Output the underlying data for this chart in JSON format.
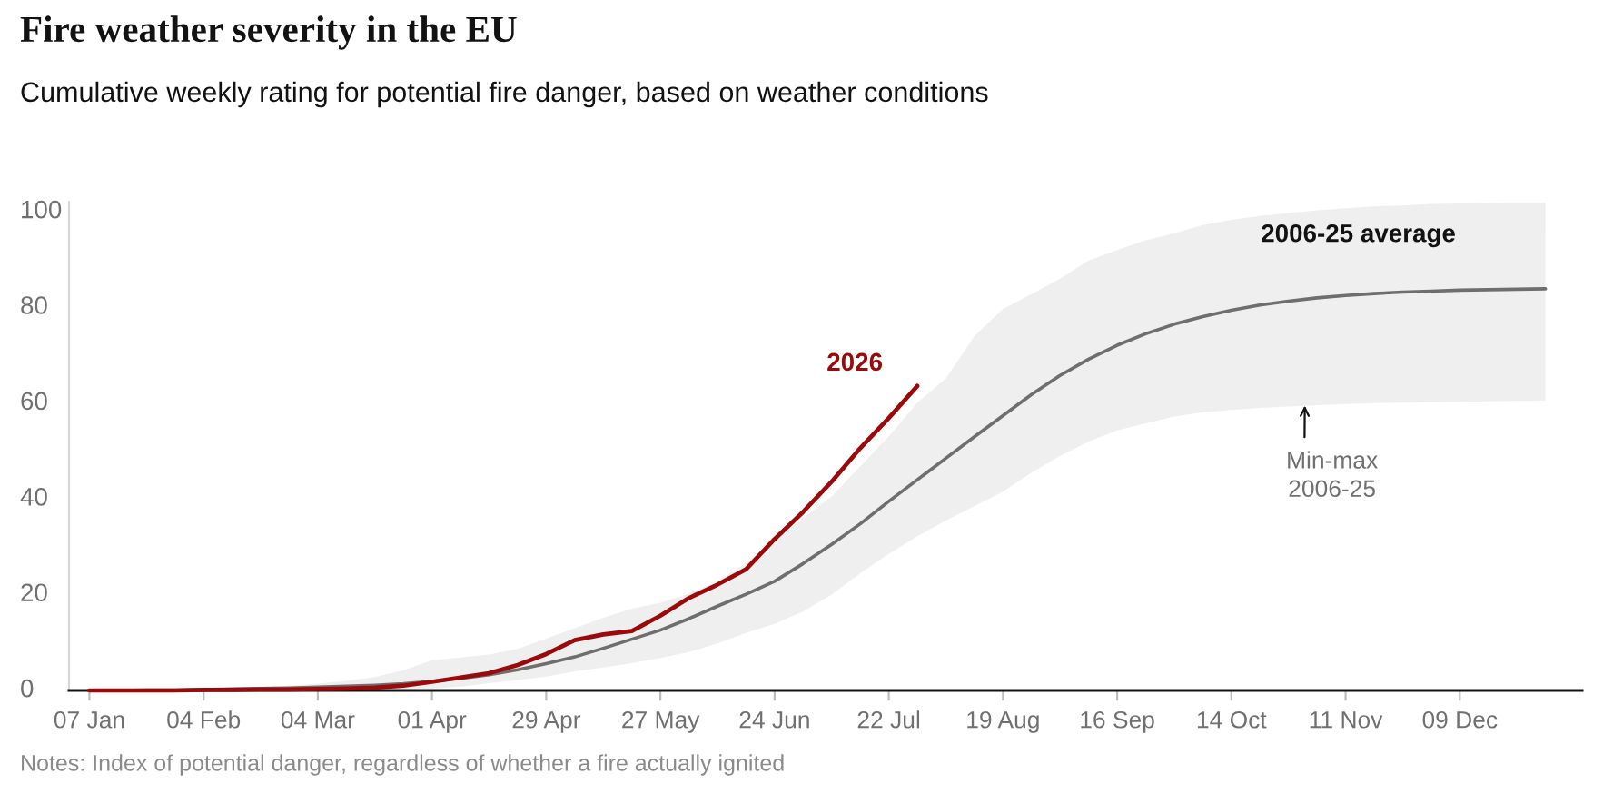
{
  "chart_data": {
    "type": "line",
    "title": "Fire weather severity in the EU",
    "subtitle": "Cumulative weekly rating for potential fire danger, based on weather conditions",
    "x": [
      "2026-01-07",
      "2026-01-14",
      "2026-01-21",
      "2026-01-28",
      "2026-02-04",
      "2026-02-11",
      "2026-02-18",
      "2026-02-25",
      "2026-03-04",
      "2026-03-11",
      "2026-03-18",
      "2026-03-25",
      "2026-04-01",
      "2026-04-08",
      "2026-04-15",
      "2026-04-22",
      "2026-04-29",
      "2026-05-06",
      "2026-05-13",
      "2026-05-20",
      "2026-05-27",
      "2026-06-03",
      "2026-06-10",
      "2026-06-17",
      "2026-06-24",
      "2026-07-01",
      "2026-07-08",
      "2026-07-15",
      "2026-07-22",
      "2026-07-29",
      "2026-08-05",
      "2026-08-12",
      "2026-08-19",
      "2026-08-26",
      "2026-09-02",
      "2026-09-09",
      "2026-09-16",
      "2026-09-23",
      "2026-09-30",
      "2026-10-07",
      "2026-10-14",
      "2026-10-21",
      "2026-10-28",
      "2026-11-04",
      "2026-11-11",
      "2026-11-18",
      "2026-11-25",
      "2026-12-02",
      "2026-12-09",
      "2026-12-16",
      "2026-12-23",
      "2026-12-30"
    ],
    "series": [
      {
        "name": "2006-25 average",
        "color": "#6e6e6e",
        "values": [
          0,
          0,
          0.1,
          0.1,
          0.2,
          0.3,
          0.4,
          0.5,
          0.7,
          0.9,
          1.1,
          1.4,
          1.9,
          2.5,
          3.3,
          4.3,
          5.6,
          7.0,
          8.8,
          10.7,
          12.6,
          15.0,
          17.6,
          20.1,
          22.8,
          26.5,
          30.5,
          34.8,
          39.5,
          44.0,
          48.5,
          53.0,
          57.4,
          61.8,
          65.8,
          69.2,
          72.1,
          74.5,
          76.5,
          78.1,
          79.4,
          80.5,
          81.3,
          82.0,
          82.5,
          82.9,
          83.2,
          83.4,
          83.6,
          83.7,
          83.8,
          83.9
        ],
        "lower": [
          0,
          0,
          0,
          0,
          0,
          0,
          0,
          0,
          0,
          0,
          0.1,
          0.2,
          0.4,
          0.8,
          1.5,
          2.2,
          2.9,
          4.0,
          4.8,
          5.7,
          6.8,
          8.0,
          9.8,
          12.0,
          13.9,
          16.5,
          20.0,
          24.5,
          28.5,
          32.2,
          35.5,
          38.5,
          41.5,
          45.5,
          49.0,
          52.0,
          54.3,
          55.8,
          57.2,
          58.1,
          58.6,
          59.0,
          59.3,
          59.6,
          59.8,
          60.0,
          60.1,
          60.2,
          60.3,
          60.4,
          60.5,
          60.6
        ],
        "upper": [
          0,
          0.1,
          0.2,
          0.3,
          0.4,
          0.6,
          0.8,
          1.0,
          1.4,
          2.0,
          2.8,
          4.2,
          6.3,
          6.9,
          7.5,
          8.7,
          10.8,
          13.0,
          15.2,
          17.1,
          18.3,
          20.2,
          22.8,
          26.6,
          31.0,
          36.0,
          40.5,
          46.8,
          53.1,
          60.1,
          65.2,
          74.0,
          79.7,
          82.8,
          86.0,
          89.8,
          92.0,
          94.0,
          95.5,
          97.2,
          98.3,
          99.1,
          99.7,
          100.3,
          100.7,
          101.1,
          101.3,
          101.6,
          101.7,
          101.8,
          101.9,
          101.9
        ]
      },
      {
        "name": "2026",
        "color": "#9b0a0a",
        "x": [
          "2026-01-07",
          "2026-01-14",
          "2026-01-21",
          "2026-01-28",
          "2026-02-04",
          "2026-02-11",
          "2026-02-18",
          "2026-02-25",
          "2026-03-04",
          "2026-03-11",
          "2026-03-18",
          "2026-03-25",
          "2026-04-01",
          "2026-04-08",
          "2026-04-15",
          "2026-04-22",
          "2026-04-29",
          "2026-05-06",
          "2026-05-13",
          "2026-05-20",
          "2026-05-27",
          "2026-06-03",
          "2026-06-10",
          "2026-06-17",
          "2026-06-24",
          "2026-07-01",
          "2026-07-08",
          "2026-07-15",
          "2026-07-22",
          "2026-07-29"
        ],
        "values": [
          0,
          0,
          0,
          0,
          0.1,
          0.1,
          0.2,
          0.2,
          0.3,
          0.4,
          0.6,
          1.0,
          1.8,
          2.7,
          3.6,
          5.3,
          7.6,
          10.5,
          11.7,
          12.4,
          15.6,
          19.3,
          22.1,
          25.3,
          31.6,
          37.3,
          43.6,
          50.6,
          56.9,
          63.6
        ]
      }
    ],
    "xlim": [
      "2026-01-02",
      "2027-01-08"
    ],
    "xticks": [
      {
        "value": "2026-01-07",
        "label": "07 Jan"
      },
      {
        "value": "2026-02-04",
        "label": "04 Feb"
      },
      {
        "value": "2026-03-04",
        "label": "04 Mar"
      },
      {
        "value": "2026-04-01",
        "label": "01 Apr"
      },
      {
        "value": "2026-04-29",
        "label": "29 Apr"
      },
      {
        "value": "2026-05-27",
        "label": "27 May"
      },
      {
        "value": "2026-06-24",
        "label": "24 Jun"
      },
      {
        "value": "2026-07-22",
        "label": "22 Jul"
      },
      {
        "value": "2026-08-19",
        "label": "19 Aug"
      },
      {
        "value": "2026-09-16",
        "label": "16 Sep"
      },
      {
        "value": "2026-10-14",
        "label": "14 Oct"
      },
      {
        "value": "2026-11-11",
        "label": "11 Nov"
      },
      {
        "value": "2026-12-09",
        "label": "09 Dec"
      }
    ],
    "ylim": [
      0,
      102
    ],
    "yticks": [
      0,
      20,
      40,
      60,
      80,
      100
    ],
    "annotations": [
      {
        "text": "Min-max\n2006-25",
        "x": "2026-11-01",
        "y": 59.5
      },
      "Notes: Index of potential danger, regardless of whether a fire actually ignited"
    ]
  }
}
